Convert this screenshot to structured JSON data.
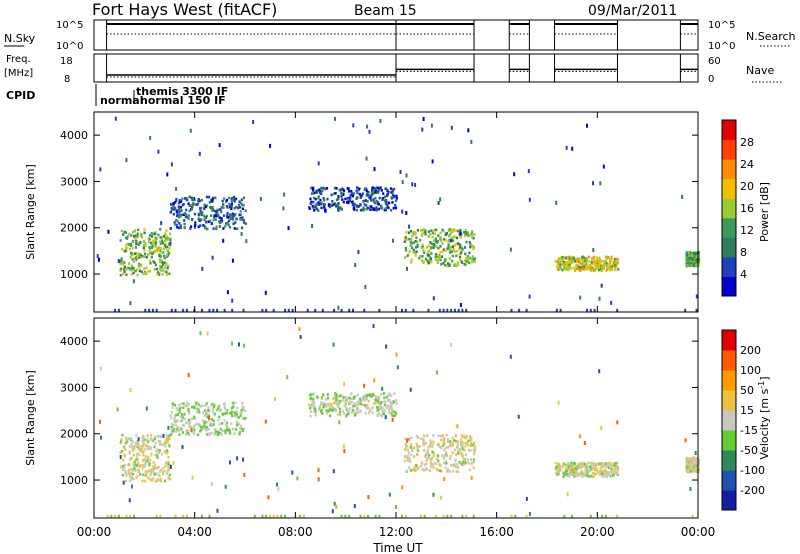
{
  "header": {
    "title": "Fort Hays West (fitACF)",
    "beam": "Beam 15",
    "date": "09/Mar/2011"
  },
  "top_panels": {
    "nsky_label": "N.Sky",
    "nsky_ticks": [
      "10^5",
      "10^0"
    ],
    "nsearch_label": "N.Search",
    "nsearch_ticks": [
      "10^5",
      "10^0"
    ],
    "freq_label_1": "Freq.",
    "freq_label_2": "[MHz]",
    "freq_ticks": [
      "18",
      "8"
    ],
    "nave_label": "Nave",
    "nave_ticks": [
      "60",
      "0"
    ],
    "cpid_label": "CPID",
    "cpid_names": [
      "normal",
      "themis 3300 IF",
      "normal 150 IF"
    ]
  },
  "power_panel": {
    "ylabel": "Slant Range [km]",
    "yticks": [
      "4000",
      "3000",
      "2000",
      "1000"
    ],
    "colorbar_label": "Power [dB]",
    "colorbar_ticks": [
      "28",
      "24",
      "20",
      "16",
      "12",
      "8",
      "4"
    ]
  },
  "velocity_panel": {
    "ylabel": "Slant Range [km]",
    "yticks": [
      "4000",
      "3000",
      "2000",
      "1000"
    ],
    "colorbar_label": "Velocity [m s",
    "colorbar_sup": "-1",
    "colorbar_close": "]",
    "colorbar_ticks": [
      "200",
      "100",
      "50",
      "15",
      "-15",
      "-50",
      "-100",
      "-200"
    ]
  },
  "xaxis": {
    "label": "Time UT",
    "ticks": [
      "00:00",
      "04:00",
      "08:00",
      "12:00",
      "16:00",
      "20:00",
      "00:00"
    ]
  },
  "colors": {
    "power_scale": [
      "#0000cc",
      "#1f3fbf",
      "#2e7d5a",
      "#3a9a5a",
      "#99cc33",
      "#f0c000",
      "#ff8c00",
      "#ff4000",
      "#e00000"
    ],
    "velocity_scale": [
      "#e00000",
      "#ff5a00",
      "#ff9a00",
      "#f0c040",
      "#c8c8c0",
      "#66cc33",
      "#2e8b57",
      "#2050b0",
      "#1020a0"
    ]
  },
  "chart_data": {
    "type": "heatmap",
    "x_unit": "hours UT",
    "xlim": [
      0,
      24
    ],
    "ylim": [
      180,
      4500
    ],
    "echo_bands": [
      {
        "t0": 1.0,
        "t1": 3.0,
        "r0": 1000,
        "r1": 2000,
        "power": 14,
        "velocity": -5
      },
      {
        "t0": 3.0,
        "t1": 6.0,
        "r0": 2000,
        "r1": 2700,
        "power": 6,
        "velocity": 15
      },
      {
        "t0": 8.5,
        "t1": 12.0,
        "r0": 2400,
        "r1": 2900,
        "power": 4,
        "velocity": 10
      },
      {
        "t0": 12.3,
        "t1": 15.1,
        "r0": 1200,
        "r1": 2000,
        "power": 14,
        "velocity": -10
      },
      {
        "t0": 18.3,
        "t1": 20.8,
        "r0": 1100,
        "r1": 1400,
        "power": 18,
        "velocity": 0
      },
      {
        "t0": 23.5,
        "t1": 24.0,
        "r0": 1200,
        "r1": 1500,
        "power": 12,
        "velocity": 0
      }
    ],
    "data_gaps": [
      [
        15.1,
        16.5
      ],
      [
        17.3,
        18.3
      ],
      [
        20.8,
        23.3
      ]
    ],
    "frequency_mhz": [
      {
        "t0": 0.5,
        "t1": 12.0,
        "f": 10.5
      },
      {
        "t0": 12.0,
        "t1": 15.1,
        "f": 12.5
      },
      {
        "t0": 16.5,
        "t1": 17.3,
        "f": 12.5
      },
      {
        "t0": 18.3,
        "t1": 20.8,
        "f": 12.5
      },
      {
        "t0": 23.3,
        "t1": 24.0,
        "f": 12.5
      }
    ]
  }
}
